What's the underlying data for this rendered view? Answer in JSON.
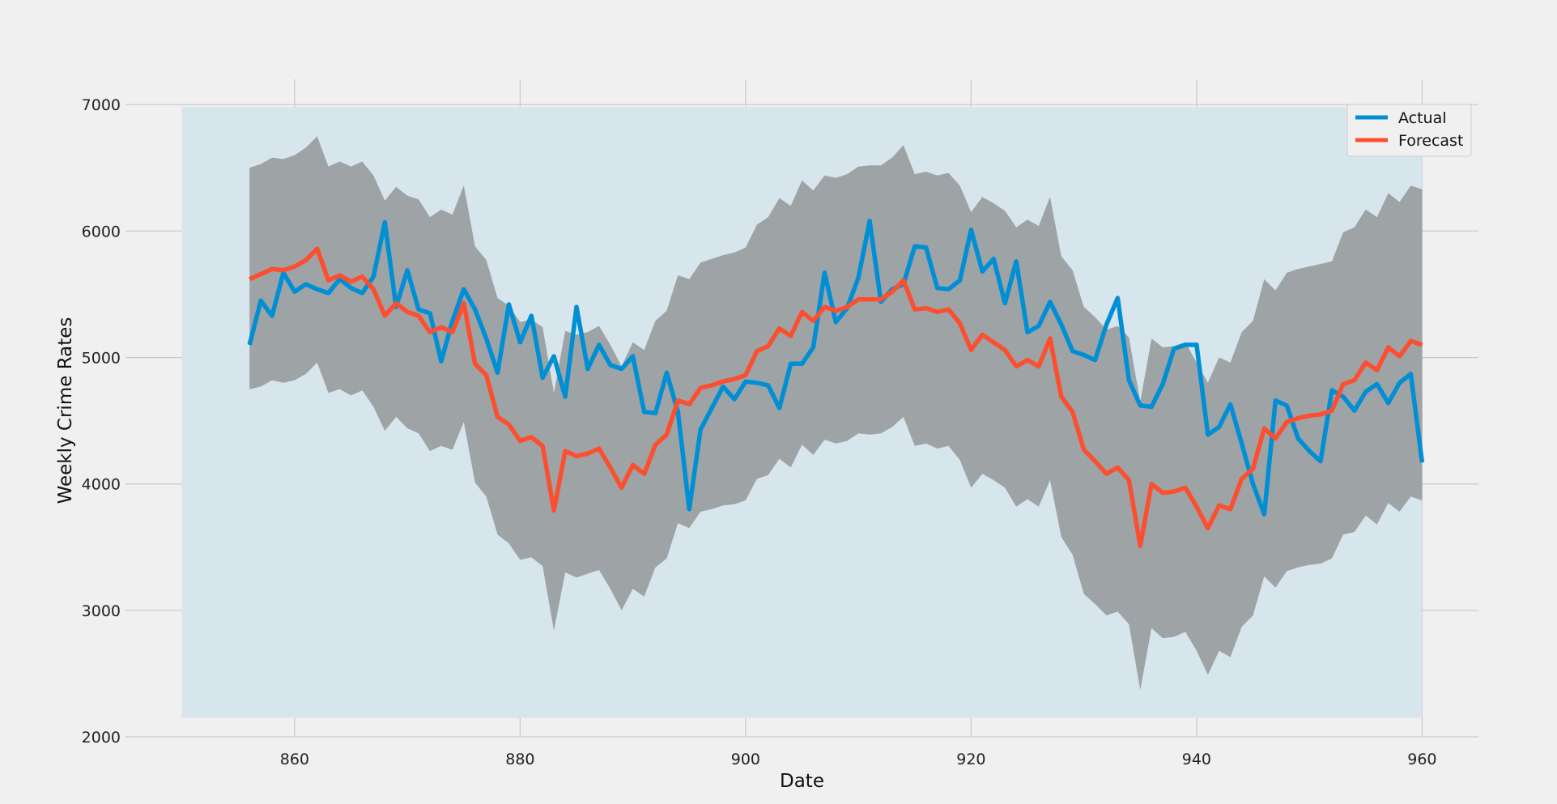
{
  "chart_data": {
    "type": "line",
    "title": "",
    "xlabel": "Date",
    "ylabel": "Weekly Crime Rates",
    "xlim": [
      845,
      965
    ],
    "ylim": [
      2000,
      7200
    ],
    "xticks": [
      860,
      880,
      900,
      920,
      940,
      960
    ],
    "yticks": [
      2000,
      3000,
      4000,
      5000,
      6000,
      7000
    ],
    "grid": true,
    "legend_position": "top-right",
    "shaded_region": {
      "x": [
        850,
        960
      ],
      "y": [
        2150,
        6980
      ],
      "color": "#d7e5ec"
    },
    "x": [
      856,
      857,
      858,
      859,
      860,
      861,
      862,
      863,
      864,
      865,
      866,
      867,
      868,
      869,
      870,
      871,
      872,
      873,
      874,
      875,
      876,
      877,
      878,
      879,
      880,
      881,
      882,
      883,
      884,
      885,
      886,
      887,
      888,
      889,
      890,
      891,
      892,
      893,
      894,
      895,
      896,
      897,
      898,
      899,
      900,
      901,
      902,
      903,
      904,
      905,
      906,
      907,
      908,
      909,
      910,
      911,
      912,
      913,
      914,
      915,
      916,
      917,
      918,
      919,
      920,
      921,
      922,
      923,
      924,
      925,
      926,
      927,
      928,
      929,
      930,
      931,
      932,
      933,
      934,
      935,
      936,
      937,
      938,
      939,
      940,
      941,
      942,
      943,
      944,
      945,
      946,
      947,
      948,
      949,
      950,
      951,
      952,
      953,
      954,
      955,
      956,
      957,
      958,
      959,
      960
    ],
    "series": [
      {
        "name": "Actual",
        "color": "#008fd5",
        "values": [
          5100,
          5450,
          5330,
          5670,
          5520,
          5580,
          5540,
          5510,
          5620,
          5550,
          5510,
          5640,
          6070,
          5400,
          5690,
          5380,
          5350,
          4970,
          5290,
          5540,
          5380,
          5150,
          4880,
          5420,
          5120,
          5330,
          4840,
          5010,
          4690,
          5400,
          4910,
          5100,
          4940,
          4910,
          5010,
          4570,
          4560,
          4880,
          4570,
          3800,
          4430,
          4600,
          4770,
          4670,
          4810,
          4800,
          4780,
          4600,
          4950,
          4950,
          5080,
          5670,
          5280,
          5390,
          5630,
          6080,
          5440,
          5540,
          5580,
          5880,
          5870,
          5550,
          5540,
          5610,
          6010,
          5680,
          5780,
          5430,
          5760,
          5200,
          5250,
          5440,
          5260,
          5050,
          5020,
          4980,
          5260,
          5470,
          4820,
          4620,
          4610,
          4790,
          5070,
          5100,
          5100,
          4390,
          4450,
          4630,
          4320,
          4000,
          3760,
          4660,
          4620,
          4360,
          4260,
          4180,
          4740,
          4690,
          4580,
          4730,
          4790,
          4640,
          4800,
          4870,
          4170
        ]
      },
      {
        "name": "Forecast",
        "color": "#fc4f30",
        "values": [
          5620,
          5660,
          5700,
          5690,
          5720,
          5770,
          5860,
          5610,
          5650,
          5600,
          5640,
          5540,
          5330,
          5430,
          5360,
          5330,
          5200,
          5240,
          5200,
          5430,
          4950,
          4860,
          4530,
          4470,
          4340,
          4370,
          4300,
          3790,
          4260,
          4220,
          4240,
          4280,
          4130,
          3970,
          4150,
          4080,
          4310,
          4390,
          4660,
          4630,
          4760,
          4780,
          4810,
          4830,
          4860,
          5050,
          5090,
          5230,
          5170,
          5360,
          5290,
          5400,
          5370,
          5400,
          5460,
          5460,
          5460,
          5520,
          5610,
          5380,
          5390,
          5360,
          5380,
          5270,
          5060,
          5180,
          5120,
          5060,
          4930,
          4980,
          4930,
          5150,
          4690,
          4570,
          4270,
          4180,
          4080,
          4130,
          4030,
          3510,
          4000,
          3930,
          3940,
          3970,
          3820,
          3650,
          3830,
          3800,
          4040,
          4120,
          4440,
          4360,
          4490,
          4520,
          4540,
          4550,
          4580,
          4790,
          4820,
          4960,
          4900,
          5080,
          5010,
          5130,
          5100
        ]
      }
    ],
    "confidence_interval": {
      "color": "#7a7a7a",
      "lower": [
        4750,
        4770,
        4820,
        4800,
        4820,
        4870,
        4960,
        4720,
        4750,
        4700,
        4740,
        4610,
        4420,
        4530,
        4440,
        4400,
        4260,
        4300,
        4270,
        4490,
        4010,
        3900,
        3600,
        3530,
        3400,
        3420,
        3350,
        2840,
        3300,
        3260,
        3290,
        3320,
        3170,
        3000,
        3170,
        3110,
        3340,
        3410,
        3690,
        3650,
        3780,
        3800,
        3830,
        3840,
        3870,
        4040,
        4070,
        4200,
        4130,
        4310,
        4230,
        4350,
        4320,
        4340,
        4400,
        4390,
        4400,
        4450,
        4530,
        4300,
        4320,
        4280,
        4300,
        4190,
        3970,
        4080,
        4030,
        3970,
        3820,
        3880,
        3820,
        4030,
        3580,
        3440,
        3130,
        3050,
        2960,
        2990,
        2890,
        2370,
        2860,
        2780,
        2790,
        2830,
        2680,
        2490,
        2680,
        2630,
        2870,
        2960,
        3270,
        3180,
        3310,
        3340,
        3360,
        3370,
        3410,
        3600,
        3620,
        3750,
        3680,
        3850,
        3780,
        3900,
        3870
      ],
      "upper": [
        6500,
        6530,
        6580,
        6570,
        6600,
        6660,
        6750,
        6510,
        6550,
        6510,
        6550,
        6440,
        6240,
        6350,
        6280,
        6250,
        6110,
        6170,
        6130,
        6360,
        5880,
        5770,
        5470,
        5410,
        5280,
        5300,
        5240,
        4720,
        5210,
        5180,
        5200,
        5250,
        5100,
        4930,
        5120,
        5060,
        5290,
        5370,
        5650,
        5620,
        5750,
        5780,
        5810,
        5830,
        5870,
        6050,
        6110,
        6260,
        6200,
        6400,
        6320,
        6440,
        6420,
        6450,
        6510,
        6520,
        6520,
        6580,
        6680,
        6450,
        6470,
        6440,
        6460,
        6360,
        6150,
        6270,
        6220,
        6160,
        6030,
        6090,
        6040,
        6270,
        5800,
        5690,
        5400,
        5320,
        5220,
        5250,
        5160,
        4650,
        5150,
        5080,
        5090,
        5120,
        4960,
        4800,
        5000,
        4960,
        5200,
        5290,
        5620,
        5530,
        5670,
        5700,
        5720,
        5740,
        5760,
        5990,
        6030,
        6170,
        6110,
        6300,
        6230,
        6360,
        6330
      ]
    }
  }
}
